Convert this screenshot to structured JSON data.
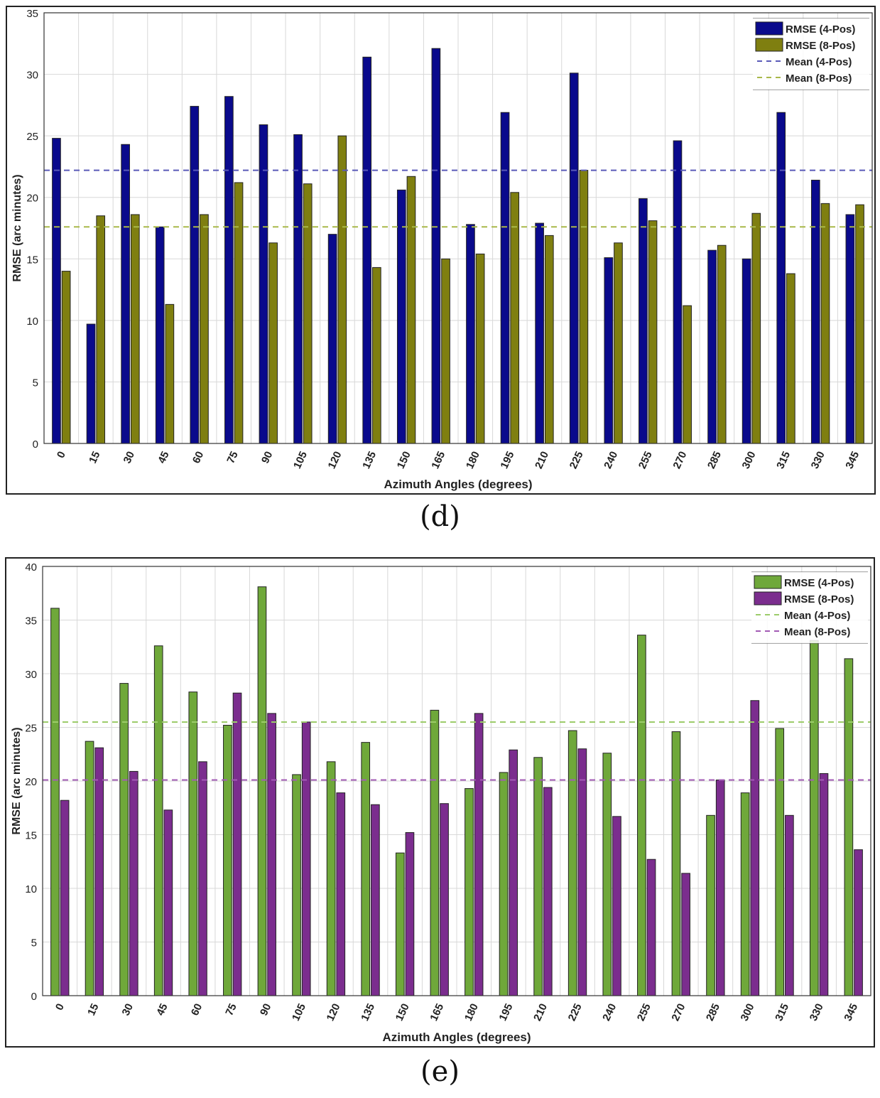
{
  "chart_data": [
    {
      "type": "bar",
      "panel_label": "(d)",
      "xlabel": "Azimuth Angles (degrees)",
      "ylabel": "RMSE (arc minutes)",
      "ylim": [
        0,
        35
      ],
      "yticks": [
        0,
        5,
        10,
        15,
        20,
        25,
        30,
        35
      ],
      "grid": true,
      "legend_position": "top-right",
      "categories": [
        "0",
        "15",
        "30",
        "45",
        "60",
        "75",
        "90",
        "105",
        "120",
        "135",
        "150",
        "165",
        "180",
        "195",
        "210",
        "225",
        "240",
        "255",
        "270",
        "285",
        "300",
        "315",
        "330",
        "345"
      ],
      "series": [
        {
          "name": "RMSE (4-Pos)",
          "color": "#0a0a8c",
          "values": [
            24.8,
            9.7,
            24.3,
            17.6,
            27.4,
            28.2,
            25.9,
            25.1,
            17.0,
            31.4,
            20.6,
            32.1,
            17.8,
            26.9,
            17.9,
            30.1,
            15.1,
            19.9,
            24.6,
            15.7,
            15.0,
            26.9,
            21.4,
            18.6
          ]
        },
        {
          "name": "RMSE (8-Pos)",
          "color": "#7f7f10",
          "values": [
            14.0,
            18.5,
            18.6,
            11.3,
            18.6,
            21.2,
            16.3,
            21.1,
            25.0,
            14.3,
            21.7,
            15.0,
            15.4,
            20.4,
            16.9,
            22.2,
            16.3,
            18.1,
            11.2,
            16.1,
            18.7,
            13.8,
            19.5,
            19.4
          ]
        }
      ],
      "mean_lines": [
        {
          "name": "Mean (4-Pos)",
          "value": 22.2,
          "color": "#5a5ab8"
        },
        {
          "name": "Mean (8-Pos)",
          "value": 17.6,
          "color": "#a9b84a"
        }
      ]
    },
    {
      "type": "bar",
      "panel_label": "(e)",
      "xlabel": "Azimuth Angles (degrees)",
      "ylabel": "RMSE (arc minutes)",
      "ylim": [
        0,
        40
      ],
      "yticks": [
        0,
        5,
        10,
        15,
        20,
        25,
        30,
        35,
        40
      ],
      "grid": true,
      "legend_position": "top-right",
      "categories": [
        "0",
        "15",
        "30",
        "45",
        "60",
        "75",
        "90",
        "105",
        "120",
        "135",
        "150",
        "165",
        "180",
        "195",
        "210",
        "225",
        "240",
        "255",
        "270",
        "285",
        "300",
        "315",
        "330",
        "345"
      ],
      "series": [
        {
          "name": "RMSE (4-Pos)",
          "color": "#6fa83a",
          "values": [
            36.1,
            23.7,
            29.1,
            32.6,
            28.3,
            25.2,
            38.1,
            20.6,
            21.8,
            23.6,
            13.3,
            26.6,
            19.3,
            20.8,
            22.2,
            24.7,
            22.6,
            33.6,
            24.6,
            16.8,
            18.9,
            24.9,
            33.1,
            31.4
          ]
        },
        {
          "name": "RMSE (8-Pos)",
          "color": "#7b2d8e",
          "values": [
            18.2,
            23.1,
            20.9,
            17.3,
            21.8,
            28.2,
            26.3,
            25.5,
            18.9,
            17.8,
            15.2,
            17.9,
            26.3,
            22.9,
            19.4,
            23.0,
            16.7,
            12.7,
            11.4,
            20.1,
            27.5,
            16.8,
            20.7,
            13.6
          ]
        }
      ],
      "mean_lines": [
        {
          "name": "Mean (4-Pos)",
          "value": 25.5,
          "color": "#9ccc6a"
        },
        {
          "name": "Mean (8-Pos)",
          "value": 20.1,
          "color": "#a35bb5"
        }
      ]
    }
  ]
}
